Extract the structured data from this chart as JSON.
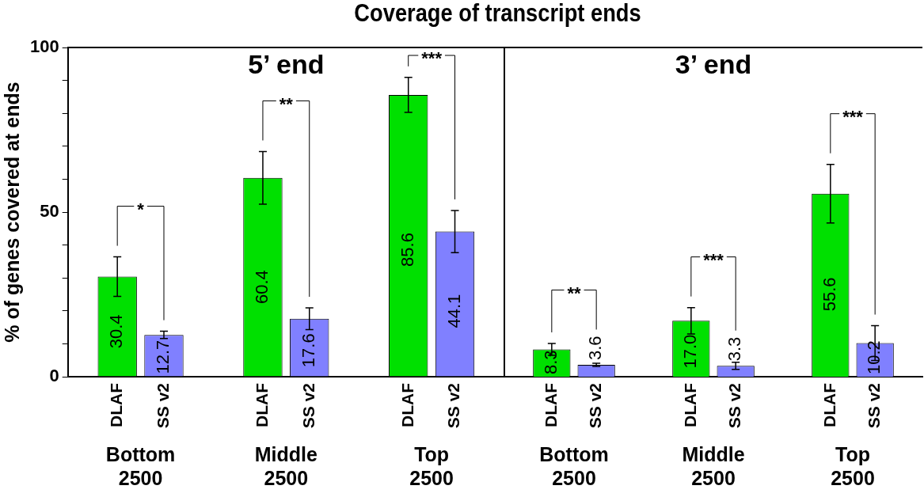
{
  "chart_data": [
    {
      "type": "bar",
      "title": "Coverage of transcript ends",
      "subtitle": "5’ end",
      "ylabel": "% of genes covered at ends",
      "categories": [
        "Bottom 2500",
        "Middle 2500",
        "Top 2500"
      ],
      "series": [
        {
          "name": "DLAF",
          "color": "#00e000",
          "values": [
            30.4,
            60.4,
            85.6
          ],
          "value_labels": [
            "30.4",
            "60.4",
            "85.6"
          ],
          "errors": [
            6,
            8,
            5.3
          ]
        },
        {
          "name": "SS v2",
          "color": "#8080ff",
          "values": [
            12.7,
            17.6,
            44.1
          ],
          "value_labels": [
            "12.7",
            "17.6",
            "44.1"
          ],
          "errors": [
            1.1,
            3.3,
            6.4
          ]
        }
      ],
      "ylim": [
        0,
        100
      ],
      "yticks": [
        0,
        {
          "value": 10,
          "label": null
        },
        {
          "value": 20,
          "label": null
        },
        {
          "value": 30,
          "label": null
        },
        {
          "value": 40,
          "label": null
        },
        50,
        {
          "value": 60,
          "label": null
        },
        {
          "value": 70,
          "label": null
        },
        {
          "value": 80,
          "label": null
        },
        {
          "value": 90,
          "label": null
        },
        100
      ],
      "annotations": [
        "*",
        "**",
        "***"
      ],
      "grid": false,
      "legend": false
    },
    {
      "type": "bar",
      "subtitle": "3’ end",
      "categories": [
        "Bottom 2500",
        "Middle 2500",
        "Top 2500"
      ],
      "series": [
        {
          "name": "DLAF",
          "color": "#00e000",
          "values": [
            8.3,
            17.0,
            55.6
          ],
          "value_labels": [
            "8.3",
            "17.0",
            "55.6"
          ],
          "errors": [
            1.8,
            4,
            8.9
          ]
        },
        {
          "name": "SS v2",
          "color": "#8080ff",
          "values": [
            3.6,
            3.3,
            10.2
          ],
          "value_labels": [
            "3.6",
            "3.3",
            "10.2"
          ],
          "errors": [
            0.5,
            1.1,
            5.3
          ]
        }
      ],
      "ylim": [
        0,
        100
      ],
      "tick_labels": "x",
      "annotations": [
        "**",
        "***",
        "***"
      ],
      "grid": false,
      "legend": false
    }
  ]
}
